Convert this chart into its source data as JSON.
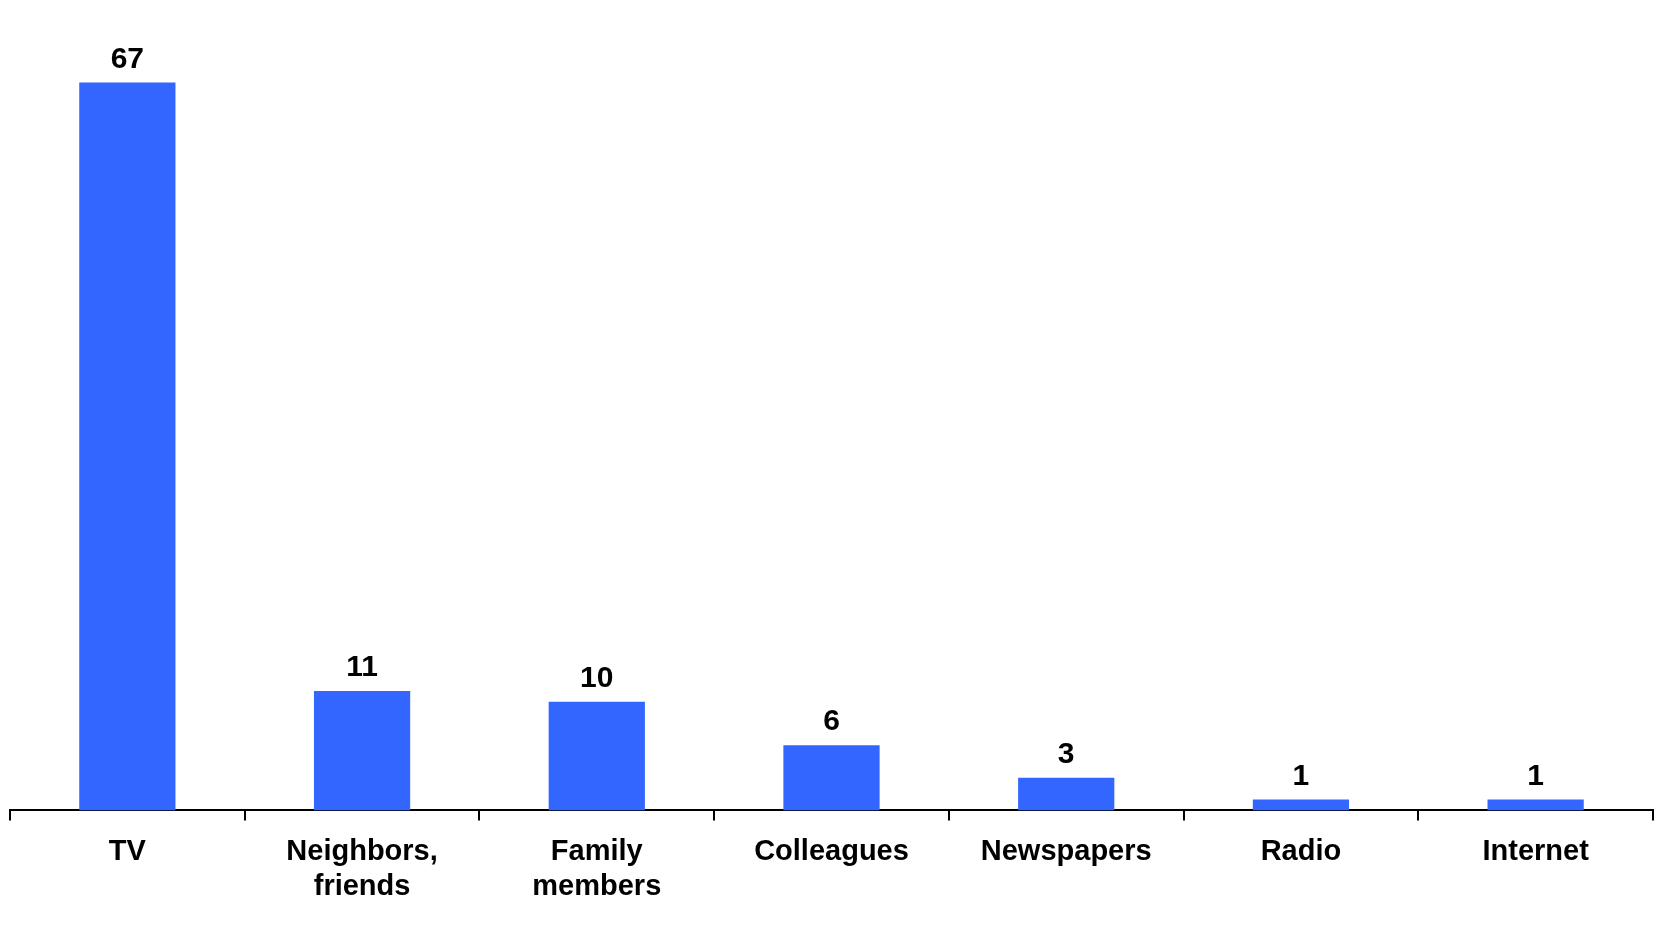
{
  "chart_data": {
    "type": "bar",
    "categories": [
      "TV",
      "Neighbors, friends",
      "Family members",
      "Colleagues",
      "Newspapers",
      "Radio",
      "Internet"
    ],
    "values": [
      67,
      11,
      10,
      6,
      3,
      1,
      1
    ],
    "color": "#3366ff",
    "data_labels": true
  }
}
